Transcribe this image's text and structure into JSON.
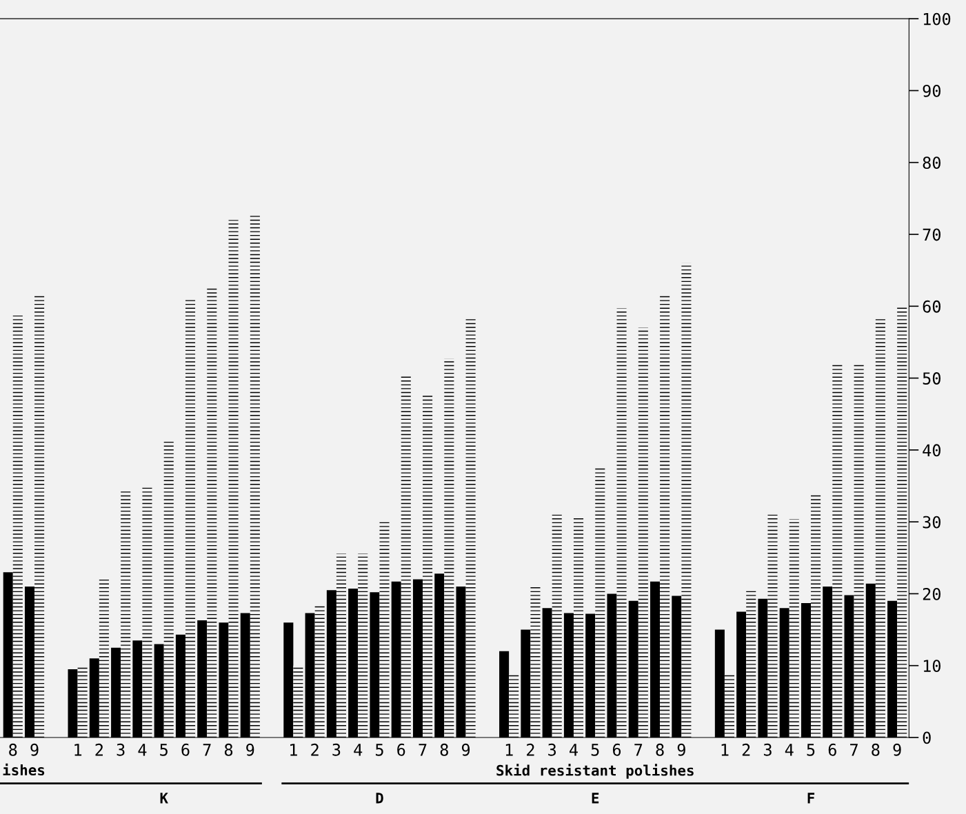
{
  "chart_data": {
    "type": "bar",
    "categories": [
      "8",
      "9",
      null,
      "1",
      "2",
      "3",
      "4",
      "5",
      "6",
      "7",
      "8",
      "9",
      null,
      "1",
      "2",
      "3",
      "4",
      "5",
      "6",
      "7",
      "8",
      "9",
      null,
      "1",
      "2",
      "3",
      "4",
      "5",
      "6",
      "7",
      "8",
      "9",
      null,
      "1",
      "2",
      "3",
      "4",
      "5",
      "6",
      "7",
      "8",
      "9"
    ],
    "series": [
      {
        "color": "#000000",
        "values": [
          23,
          21,
          null,
          9.5,
          11,
          12.5,
          13.5,
          13,
          14.3,
          16.3,
          16,
          17.3,
          null,
          16,
          17.3,
          20.5,
          20.7,
          20.2,
          21.7,
          22,
          22.8,
          21,
          null,
          12,
          15,
          18,
          17.3,
          17.2,
          20,
          19,
          21.7,
          19.7,
          null,
          15,
          17.5,
          19.3,
          18,
          18.7,
          21,
          19.8,
          21.4,
          19
        ]
      },
      {
        "color": "#000000",
        "values": [
          58.7,
          61.5,
          null,
          9.9,
          22.2,
          34.4,
          34.8,
          41.2,
          61,
          62.5,
          72,
          72.6,
          null,
          10,
          18.5,
          25.6,
          25.6,
          30.2,
          50.5,
          47.8,
          52.7,
          58.5,
          null,
          8.8,
          21.2,
          31,
          30.7,
          37.5,
          59.7,
          57,
          61.5,
          66,
          null,
          8.8,
          20.7,
          31,
          30.4,
          33.8,
          52,
          52,
          58.3,
          60
        ]
      }
    ],
    "ylim": [
      0,
      100
    ],
    "yticks": [
      0,
      10,
      20,
      30,
      40,
      50,
      60,
      70,
      80,
      90,
      100
    ],
    "grid": false,
    "legend": false,
    "annotations": [
      "ishes",
      "K",
      "Skid resistant polishes",
      "D",
      "E",
      "F"
    ]
  }
}
